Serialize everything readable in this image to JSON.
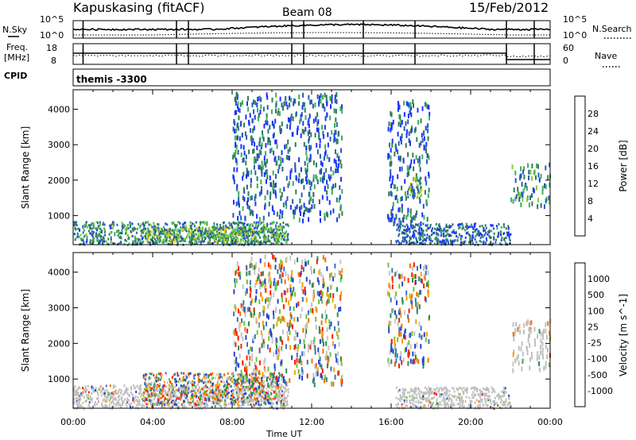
{
  "header": {
    "station": "Kapuskasing (fitACF)",
    "beam": "Beam 08",
    "date": "15/Feb/2012"
  },
  "noise_panel": {
    "left_label": "N.Sky",
    "left_ticks": [
      "10^5",
      "10^0"
    ],
    "right_ticks": [
      "10^5",
      "10^0"
    ],
    "right_label": "N.Search"
  },
  "freq_panel": {
    "left_label_1": "Freq.",
    "left_label_2": "[MHz]",
    "left_ticks": [
      "18",
      "8"
    ],
    "right_ticks": [
      "60",
      "0"
    ],
    "right_label": "Nave"
  },
  "cpid": {
    "label": "CPID",
    "value": "themis -3300"
  },
  "colors": {
    "power_scale": [
      "#1a33ff",
      "#2a5fa8",
      "#2e7d5b",
      "#3fae5a",
      "#7ed03a",
      "#f5c400",
      "#f59a00",
      "#f56a00",
      "#ff2a00"
    ],
    "velocity_scale": [
      "#2244cc",
      "#3b72c0",
      "#2d8c4e",
      "#6cc43a",
      "#c0c0c0",
      "#c8c8c8",
      "#f5a000",
      "#f07000",
      "#ff1a00"
    ],
    "ground_scatter": "#c0c0c0"
  },
  "chart_data": [
    {
      "type": "heatmap",
      "title": "",
      "xlabel": "Time UT",
      "ylabel": "Slant Range [km]",
      "xlim": [
        0,
        24
      ],
      "ylim": [
        180,
        4550
      ],
      "x_ticks": [
        "00:00",
        "04:00",
        "08:00",
        "12:00",
        "16:00",
        "20:00",
        "00:00"
      ],
      "y_ticks": [
        "1000",
        "2000",
        "3000",
        "4000"
      ],
      "colorbar": {
        "label": "Power [dB]",
        "ticks": [
          "28",
          "24",
          "20",
          "16",
          "12",
          "8",
          "4"
        ],
        "range": [
          0,
          30
        ]
      },
      "regions": [
        {
          "t_start": 0.0,
          "t_end": 10.8,
          "range_min": 200,
          "range_max": 850,
          "value": 10
        },
        {
          "t_start": 3.5,
          "t_end": 10.5,
          "range_min": 300,
          "range_max": 700,
          "value": 16
        },
        {
          "t_start": 8.0,
          "t_end": 13.5,
          "range_min": 900,
          "range_max": 4500,
          "value": 6
        },
        {
          "t_start": 15.8,
          "t_end": 17.9,
          "range_min": 800,
          "range_max": 4300,
          "value": 6
        },
        {
          "t_start": 16.8,
          "t_end": 17.5,
          "range_min": 1500,
          "range_max": 2100,
          "value": 14
        },
        {
          "t_start": 16.2,
          "t_end": 22.0,
          "range_min": 200,
          "range_max": 800,
          "value": 8
        },
        {
          "t_start": 22.0,
          "t_end": 24.0,
          "range_min": 1300,
          "range_max": 2500,
          "value": 10
        }
      ]
    },
    {
      "type": "heatmap",
      "title": "",
      "xlabel": "Time UT",
      "ylabel": "Slant Range [km]",
      "xlim": [
        0,
        24
      ],
      "ylim": [
        180,
        4550
      ],
      "x_ticks": [
        "00:00",
        "04:00",
        "08:00",
        "12:00",
        "16:00",
        "20:00",
        "00:00"
      ],
      "y_ticks": [
        "1000",
        "2000",
        "3000",
        "4000"
      ],
      "colorbar": {
        "label": "Velocity [m s^-1]",
        "ticks": [
          "1000",
          "500",
          "100",
          "25",
          "-25",
          "-100",
          "-500",
          "-1000"
        ],
        "range": [
          -1000,
          1000
        ]
      },
      "regions": [
        {
          "t_start": 0.0,
          "t_end": 10.8,
          "range_min": 200,
          "range_max": 850,
          "value": 0
        },
        {
          "t_start": 3.5,
          "t_end": 10.5,
          "range_min": 300,
          "range_max": 1200,
          "value": 100
        },
        {
          "t_start": 8.0,
          "t_end": 13.5,
          "range_min": 900,
          "range_max": 4500,
          "value": -100
        },
        {
          "t_start": 15.8,
          "t_end": 17.9,
          "range_min": 1400,
          "range_max": 4300,
          "value": -100
        },
        {
          "t_start": 16.2,
          "t_end": 22.0,
          "range_min": 200,
          "range_max": 800,
          "value": 0
        },
        {
          "t_start": 22.0,
          "t_end": 24.0,
          "range_min": 1300,
          "range_max": 2700,
          "value": 0
        }
      ]
    }
  ]
}
